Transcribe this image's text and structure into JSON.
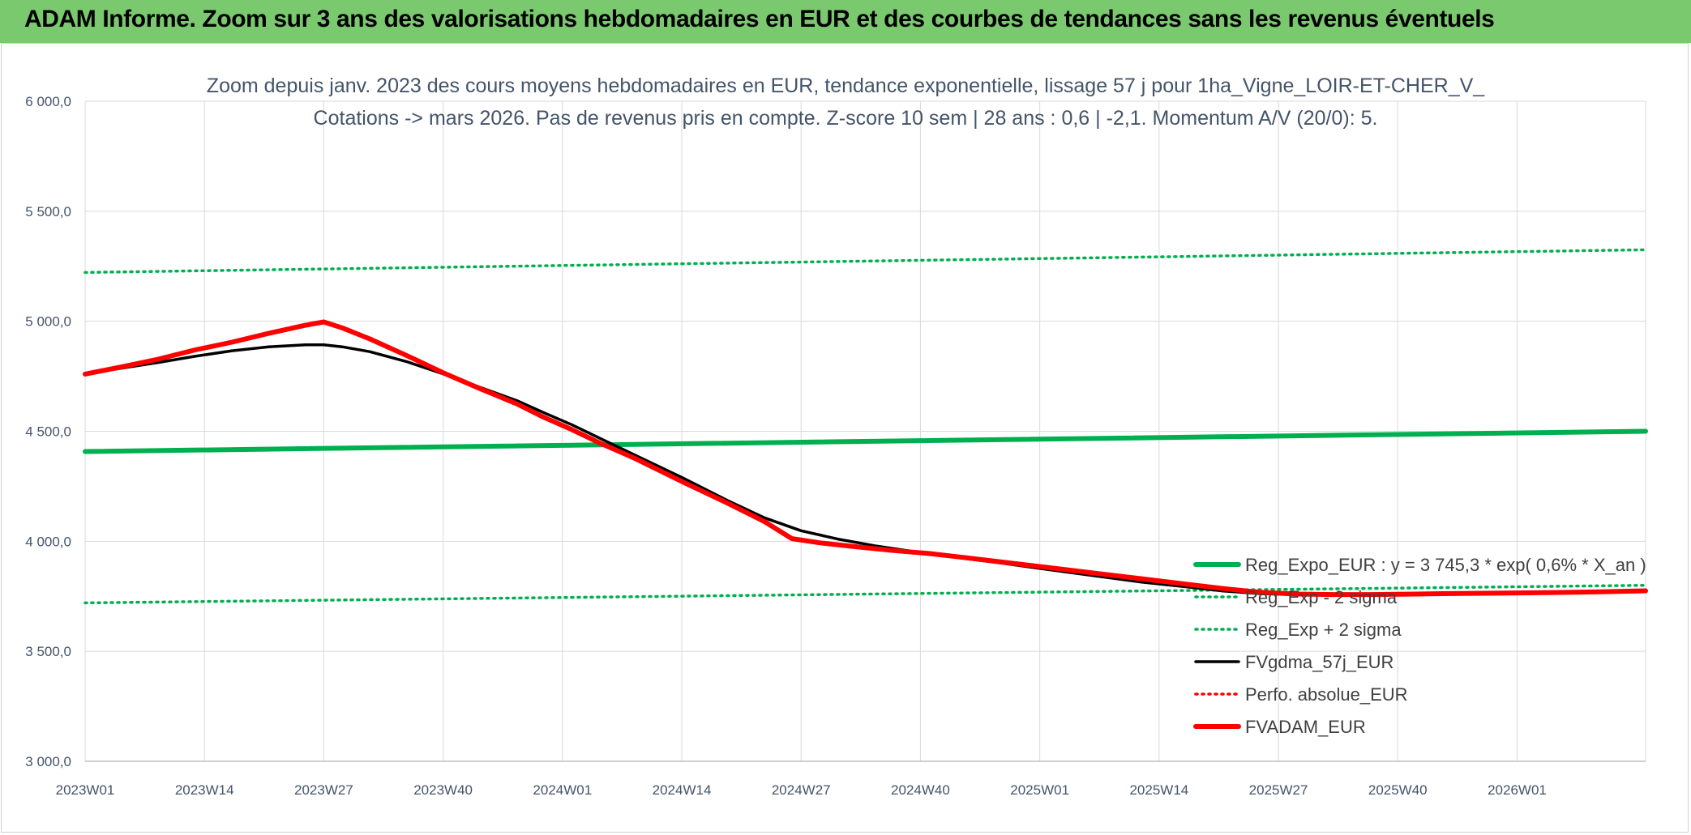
{
  "header": {
    "title": "ADAM Informe. Zoom sur 3 ans des valorisations hebdomadaires en EUR et des courbes de tendances sans les revenus éventuels"
  },
  "colors": {
    "banner": "#7ac96f",
    "reg_expo": "#00b050",
    "fvgdma": "#000000",
    "fvadam": "#ff0000",
    "title_text": "#44546a"
  },
  "chart_data": {
    "type": "line",
    "title": "Zoom depuis janv. 2023 des cours moyens hebdomadaires en EUR, tendance exponentielle, lissage 57 j pour 1ha_Vigne_LOIR-ET-CHER_V_",
    "subtitle": "Cotations -> mars 2026. Pas de revenus pris en compte. Z-score 10 sem | 28 ans : 0,6 | -2,1. Momentum A/V (20/0): 5.",
    "xlabel": "",
    "ylabel": "",
    "ylim": [
      3000,
      6000
    ],
    "y_ticks": [
      "3 000,0",
      "3 500,0",
      "4 000,0",
      "4 500,0",
      "5 000,0",
      "5 500,0",
      "6 000,0"
    ],
    "x_ticks": [
      "2023W01",
      "2023W14",
      "2023W27",
      "2023W40",
      "2024W01",
      "2024W14",
      "2024W27",
      "2024W40",
      "2025W01",
      "2025W14",
      "2025W27",
      "2025W40",
      "2026W01"
    ],
    "x_tick_weeks": [
      0,
      13,
      26,
      39,
      52,
      65,
      78,
      91,
      104,
      117,
      130,
      143,
      156
    ],
    "x_range_weeks": [
      0,
      170
    ],
    "grid": true,
    "legend_position": "bottom-right",
    "series": [
      {
        "name": "Reg_Expo_EUR : y = 3 745,3 * exp( 0,6% *  X_an )",
        "style": "solid-thick",
        "color": "#00b050",
        "x": [
          0,
          170
        ],
        "y": [
          4408,
          4500
        ]
      },
      {
        "name": "Reg_Exp - 2 sigma",
        "style": "dotted",
        "color": "#00b050",
        "x": [
          0,
          170
        ],
        "y": [
          3720,
          3800
        ]
      },
      {
        "name": "Reg_Exp + 2 sigma",
        "style": "dotted",
        "color": "#00b050",
        "x": [
          0,
          170
        ],
        "y": [
          5222,
          5325
        ]
      },
      {
        "name": "FVgdma_57j_EUR",
        "style": "solid",
        "color": "#000000",
        "x": [
          0,
          4,
          8,
          12,
          16,
          20,
          24,
          26,
          28,
          31,
          35,
          39,
          43,
          47,
          50,
          53,
          56,
          60,
          65,
          70,
          74,
          78,
          82,
          86,
          90,
          95,
          100,
          105,
          110,
          115,
          120,
          124,
          128,
          132,
          136,
          140,
          145,
          150,
          155,
          160,
          165,
          170
        ],
        "y": [
          4760,
          4787,
          4813,
          4841,
          4866,
          4884,
          4893,
          4893,
          4884,
          4862,
          4817,
          4761,
          4700,
          4640,
          4584,
          4530,
          4470,
          4390,
          4290,
          4185,
          4107,
          4048,
          4010,
          3980,
          3955,
          3926,
          3900,
          3871,
          3843,
          3815,
          3793,
          3774,
          3762,
          3758,
          3758,
          3760,
          3762,
          3765,
          3768,
          3770,
          3772,
          3775
        ]
      },
      {
        "name": "Perfo. absolue_EUR",
        "style": "dotted",
        "color": "#ff0000",
        "x": [],
        "y": []
      },
      {
        "name": "FVADAM_EUR",
        "style": "solid-thick",
        "color": "#ff0000",
        "x": [
          0,
          4,
          8,
          12,
          16,
          20,
          24,
          26,
          28,
          31,
          35,
          39,
          43,
          47,
          50,
          53,
          56,
          60,
          65,
          70,
          74,
          77,
          80,
          84,
          88,
          92,
          96,
          100,
          105,
          110,
          115,
          120,
          124,
          128,
          132,
          136,
          140,
          145,
          150,
          155,
          160,
          165,
          170
        ],
        "y": [
          4760,
          4793,
          4828,
          4870,
          4905,
          4945,
          4982,
          4997,
          4970,
          4920,
          4845,
          4766,
          4694,
          4625,
          4563,
          4508,
          4448,
          4375,
          4272,
          4173,
          4090,
          4012,
          3993,
          3975,
          3958,
          3944,
          3925,
          3905,
          3880,
          3855,
          3830,
          3805,
          3785,
          3768,
          3760,
          3758,
          3758,
          3760,
          3763,
          3765,
          3767,
          3770,
          3775
        ]
      }
    ]
  }
}
